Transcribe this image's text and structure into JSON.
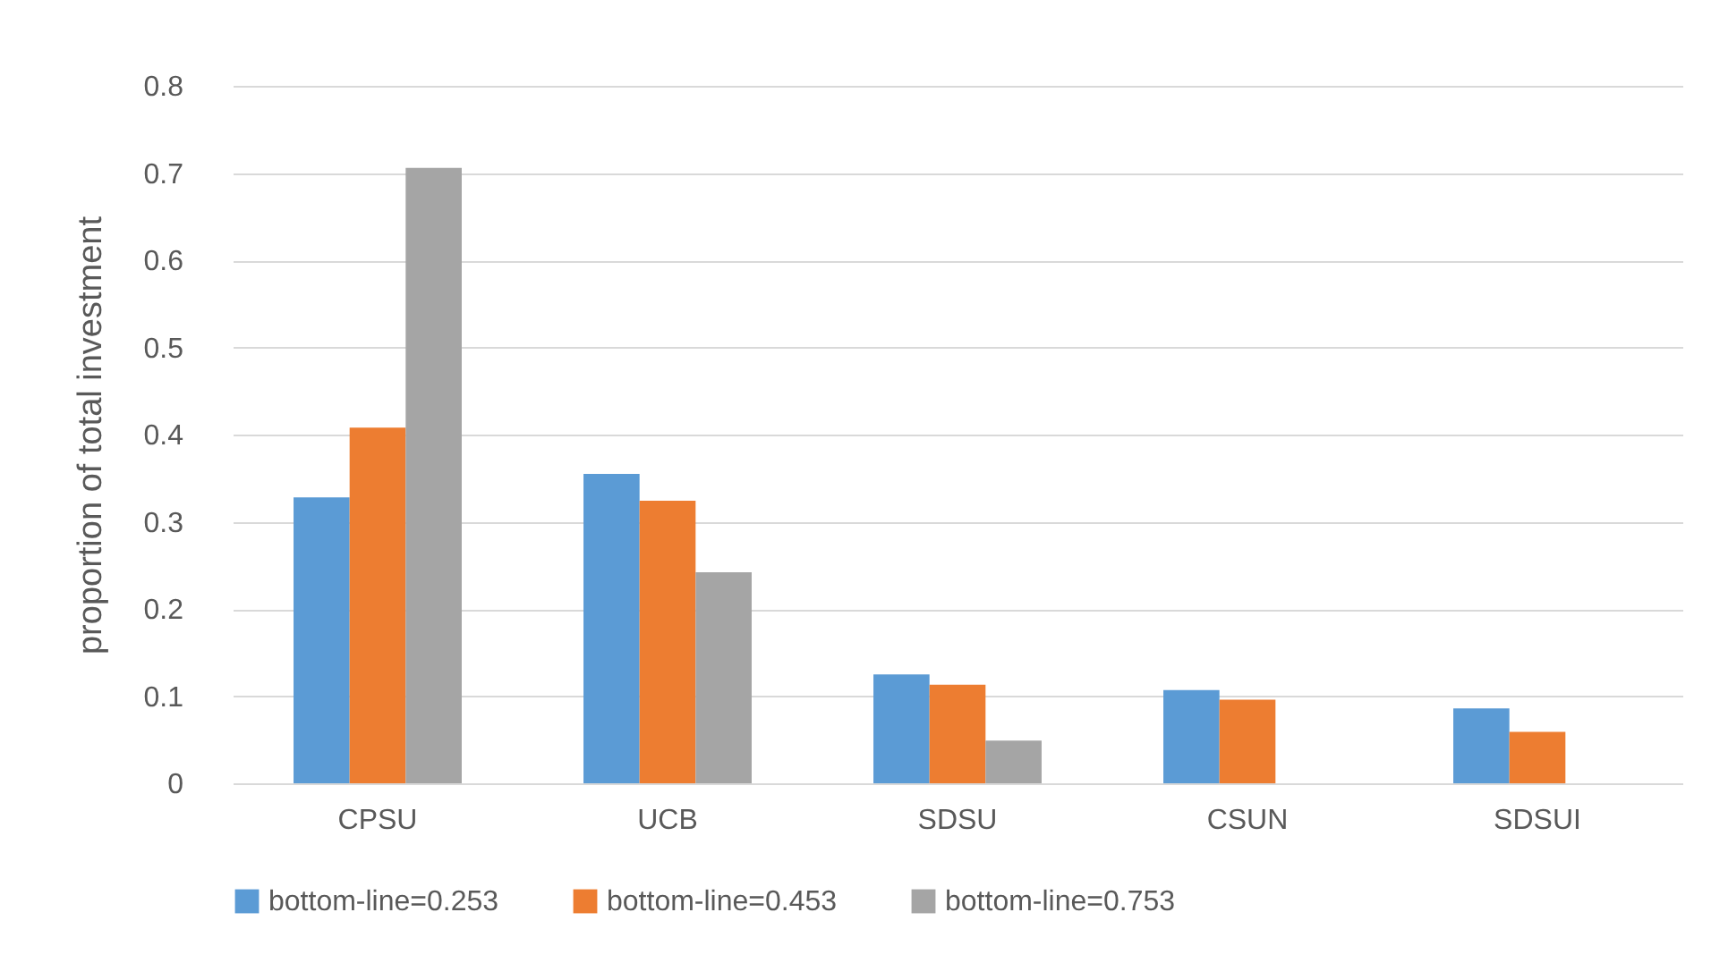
{
  "chart_data": {
    "type": "bar",
    "ylabel": "proportion of total investment",
    "categories": [
      "CPSU",
      "UCB",
      "SDSU",
      "CSUN",
      "SDSUI"
    ],
    "series": [
      {
        "name": "bottom-line=0.253",
        "color": "#5b9bd5",
        "values": [
          0.328,
          0.355,
          0.125,
          0.107,
          0.086
        ]
      },
      {
        "name": "bottom-line=0.453",
        "color": "#ed7d31",
        "values": [
          0.408,
          0.324,
          0.113,
          0.096,
          0.059
        ]
      },
      {
        "name": "bottom-line=0.753",
        "color": "#a5a5a5",
        "values": [
          0.706,
          0.242,
          0.049,
          0,
          0
        ]
      }
    ],
    "ylim": [
      0,
      0.8
    ],
    "yticks": [
      0,
      0.1,
      0.2,
      0.3,
      0.4,
      0.5,
      0.6,
      0.7,
      0.8
    ],
    "grid": "y",
    "legend": "bottom"
  }
}
